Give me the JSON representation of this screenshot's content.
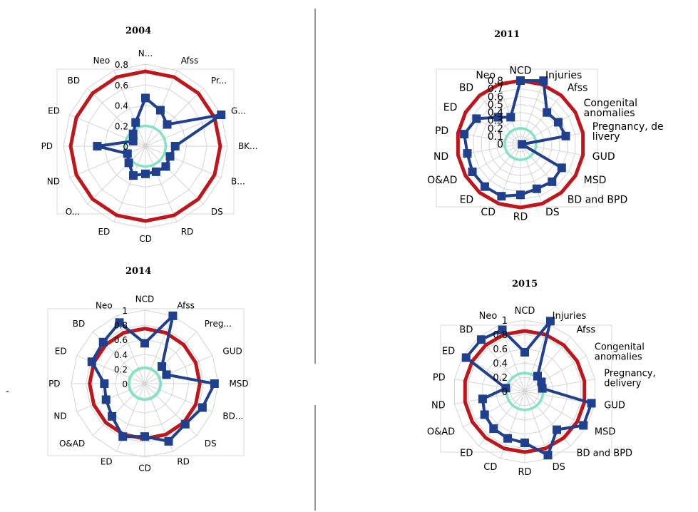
{
  "chart_data": [
    {
      "type": "radar",
      "title": "2004",
      "categories": [
        "N...",
        "Afss",
        "Pr...",
        "G...",
        "BK...",
        "B...",
        "DS",
        "RD",
        "CD",
        "ED",
        "O...",
        "ND",
        "PD",
        "ED",
        "BD",
        "Neo"
      ],
      "rlim": [
        0,
        0.8
      ],
      "ticks": [
        "0",
        "0.2",
        "0.4",
        "0.6",
        "0.8"
      ],
      "grid": true,
      "series": [
        {
          "values": [
            0.47,
            0.38,
            0.3,
            0.8,
            0.29,
            0.26,
            0.28,
            0.27,
            0.27,
            0.31,
            0.23,
            0.19,
            0.47,
            0.13,
            0.17,
            0.25
          ],
          "color": "#1f3f8f"
        },
        {
          "values": [
            0.73,
            0.73,
            0.73,
            0.73,
            0.73,
            0.73,
            0.73,
            0.73,
            0.73,
            0.73,
            0.73,
            0.73,
            0.73,
            0.73,
            0.73,
            0.73
          ],
          "color": "#c0161b"
        },
        {
          "values": [
            0.2,
            0.2,
            0.2,
            0.2,
            0.2,
            0.2,
            0.2,
            0.2,
            0.2,
            0.2,
            0.2,
            0.2,
            0.2,
            0.2,
            0.2,
            0.2
          ],
          "color": "#7fe3c4"
        }
      ]
    },
    {
      "type": "radar",
      "title": "2011",
      "categories": [
        "NCD",
        "Injuries",
        "Afss",
        "Congenital anomalies",
        "Pregnancy, de livery",
        "GUD",
        "MSD",
        "BD and BPD",
        "DS",
        "RD",
        "CD",
        "ED",
        "O&AD",
        "ND",
        "PD",
        "ED",
        "BD",
        "Neo"
      ],
      "rlim": [
        0,
        0.8
      ],
      "ticks": [
        "0",
        "0.1",
        "0.2",
        "0.3",
        "0.4",
        "0.5",
        "0.6",
        "0.7",
        "0.8"
      ],
      "grid": true,
      "series": [
        {
          "values": [
            0.8,
            0.85,
            0.52,
            0.55,
            0.58,
            0.02,
            0.6,
            0.62,
            0.6,
            0.64,
            0.7,
            0.7,
            0.7,
            0.68,
            0.72,
            0.64,
            0.44,
            0.36
          ],
          "color": "#1f3f8f"
        },
        {
          "values": [
            0.8,
            0.8,
            0.8,
            0.8,
            0.8,
            0.8,
            0.8,
            0.8,
            0.8,
            0.8,
            0.8,
            0.8,
            0.8,
            0.8,
            0.8,
            0.8,
            0.8,
            0.8
          ],
          "color": "#c0161b"
        },
        {
          "values": [
            0.2,
            0.2,
            0.2,
            0.2,
            0.2,
            0.2,
            0.2,
            0.2,
            0.2,
            0.2,
            0.2,
            0.2,
            0.2,
            0.2,
            0.2,
            0.2,
            0.2,
            0.2
          ],
          "color": "#7fe3c4"
        }
      ]
    },
    {
      "type": "radar",
      "title": "2014",
      "categories": [
        "NCD",
        "Afss",
        "Preg...",
        "GUD",
        "MSD",
        "BD...",
        "DS",
        "RD",
        "CD",
        "ED",
        "O&AD",
        "ND",
        "PD",
        "ED",
        "BD",
        "Neo"
      ],
      "rlim": [
        0,
        1
      ],
      "ticks": [
        "0",
        "0.2",
        "0.4",
        "0.6",
        "0.8",
        "1"
      ],
      "grid": true,
      "series": [
        {
          "values": [
            0.55,
            1.0,
            0.33,
            0.32,
            0.95,
            0.85,
            0.78,
            0.85,
            0.72,
            0.78,
            0.63,
            0.57,
            0.55,
            0.78,
            0.8,
            0.9
          ],
          "color": "#1f3f8f"
        },
        {
          "values": [
            0.75,
            0.75,
            0.75,
            0.75,
            0.75,
            0.75,
            0.75,
            0.75,
            0.75,
            0.75,
            0.75,
            0.75,
            0.75,
            0.75,
            0.75,
            0.75
          ],
          "color": "#c0161b"
        },
        {
          "values": [
            0.22,
            0.22,
            0.22,
            0.22,
            0.22,
            0.22,
            0.22,
            0.22,
            0.22,
            0.22,
            0.22,
            0.22,
            0.22,
            0.22,
            0.22,
            0.22
          ],
          "color": "#7fe3c4"
        }
      ]
    },
    {
      "type": "radar",
      "title": "2015",
      "categories": [
        "NCD",
        "Injuries",
        "Afss",
        "Congenital anomalies",
        "Pregnancy, delivery",
        "GUD",
        "MSD",
        "BD and BPD",
        "DS",
        "RD",
        "CD",
        "ED",
        "O&AD",
        "ND",
        "PD",
        "ED",
        "BD",
        "Neo"
      ],
      "rlim": [
        0,
        1
      ],
      "ticks": [
        "0",
        "0.2",
        "0.4",
        "0.6",
        "0.8",
        "1"
      ],
      "grid": true,
      "series": [
        {
          "values": [
            0.55,
            1.05,
            0.28,
            0.27,
            0.25,
            0.95,
            0.95,
            0.7,
            0.95,
            0.72,
            0.7,
            0.68,
            0.65,
            0.6,
            0.27,
            0.95,
            0.95,
            0.92
          ],
          "color": "#1f3f8f"
        },
        {
          "values": [
            0.85,
            0.85,
            0.85,
            0.85,
            0.85,
            0.85,
            0.85,
            0.85,
            0.85,
            0.85,
            0.85,
            0.85,
            0.85,
            0.85,
            0.85,
            0.85,
            0.85,
            0.85
          ],
          "color": "#c0161b"
        },
        {
          "values": [
            0.26,
            0.26,
            0.26,
            0.26,
            0.26,
            0.26,
            0.26,
            0.26,
            0.26,
            0.26,
            0.26,
            0.26,
            0.26,
            0.26,
            0.26,
            0.26,
            0.26,
            0.26
          ],
          "color": "#7fe3c4"
        }
      ]
    }
  ],
  "stray_mark": "-"
}
